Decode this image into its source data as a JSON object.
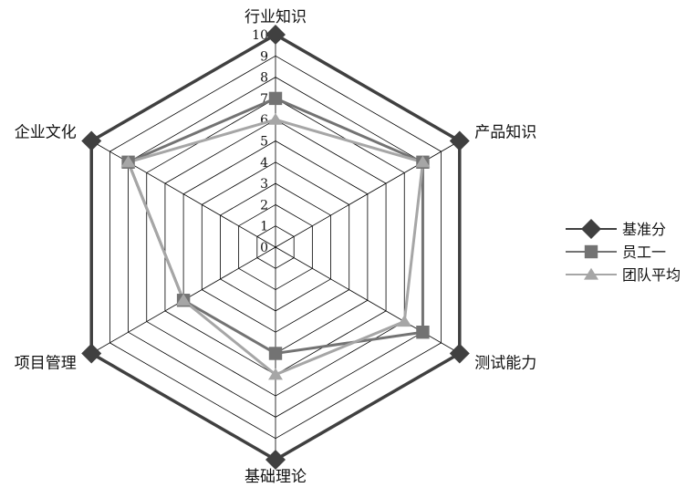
{
  "chart_data": {
    "type": "radar",
    "categories": [
      "行业知识",
      "产品知识",
      "测试能力",
      "基础理论",
      "项目管理",
      "企业文化"
    ],
    "rlim": [
      0,
      10
    ],
    "ticks": [
      "0",
      "1",
      "2",
      "3",
      "4",
      "5",
      "6",
      "7",
      "8",
      "9",
      "10"
    ],
    "grid": true,
    "legend_position": "right",
    "series": [
      {
        "name": "基准分",
        "marker": "diamond",
        "color": "#404040",
        "values": [
          10,
          10,
          10,
          10,
          10,
          10
        ]
      },
      {
        "name": "员工一",
        "marker": "square",
        "color": "#737373",
        "values": [
          7,
          8,
          8,
          5,
          5,
          8
        ]
      },
      {
        "name": "团队平均",
        "marker": "triangle",
        "color": "#a6a6a6",
        "values": [
          6,
          8,
          7,
          6,
          5,
          8
        ]
      }
    ]
  }
}
